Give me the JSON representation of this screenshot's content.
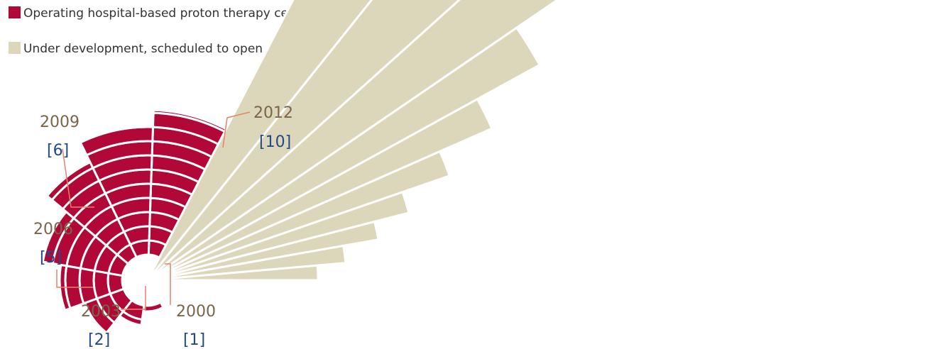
{
  "colors": {
    "operating": "#b10838",
    "development": "#dcd6bb",
    "year_text": "#7a6549",
    "count_text": "#23498a",
    "leader": "#e8826a"
  },
  "chart_data": {
    "type": "polar-area",
    "title": "",
    "legend": [
      {
        "key": "operating",
        "label": "Operating hospital-based proton therapy centers nationwide"
      },
      {
        "key": "development",
        "label": "Under development, scheduled to open"
      }
    ],
    "operating_milestones": [
      {
        "year": "2000",
        "count": "[1]"
      },
      {
        "year": "2003",
        "count": "[2]"
      },
      {
        "year": "2006",
        "count": "[5]"
      },
      {
        "year": "2009",
        "count": "[6]"
      },
      {
        "year": "2012",
        "count": "[10]"
      }
    ],
    "operating_wedges": 10,
    "development_wedges": 10
  }
}
